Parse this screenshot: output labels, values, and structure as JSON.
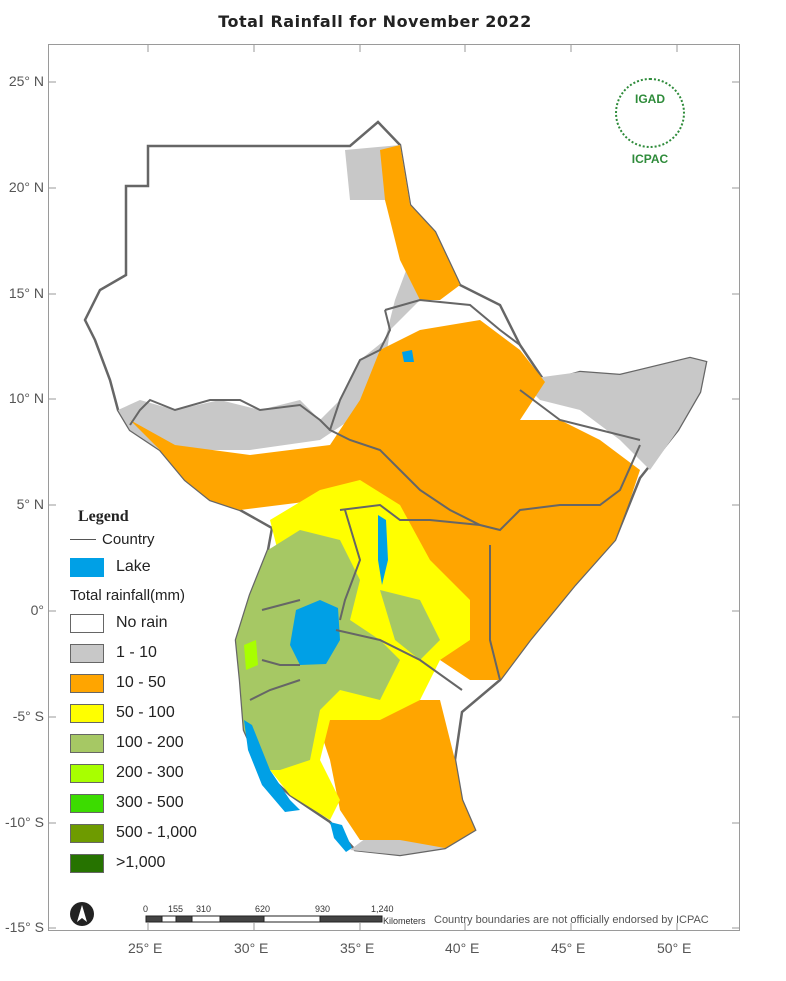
{
  "title": "Total  Rainfall for  November  2022",
  "latitude_labels": [
    "25° N",
    "20° N",
    "15° N",
    "10° N",
    "5° N",
    "0°",
    "-5° S",
    "-10° S",
    "-15° S"
  ],
  "longitude_labels": [
    "25° E",
    "30° E",
    "35° E",
    "40° E",
    "45° E",
    "50° E"
  ],
  "legend": {
    "heading": "Legend",
    "country_label": "Country",
    "lake_label": "Lake",
    "rain_heading": "Total rainfall(mm)",
    "classes": [
      {
        "label": "No rain",
        "color": "#ffffff"
      },
      {
        "label": "1 - 10",
        "color": "#c8c8c8"
      },
      {
        "label": "10 - 50",
        "color": "#ffa500"
      },
      {
        "label": "50 - 100",
        "color": "#ffff00"
      },
      {
        "label": "100 - 200",
        "color": "#a6c864"
      },
      {
        "label": "200 - 300",
        "color": "#a8ff00"
      },
      {
        "label": "300 - 500",
        "color": "#3cdc00"
      },
      {
        "label": "500 - 1,000",
        "color": "#6e9b00"
      },
      {
        "label": ">1,000",
        "color": "#267300"
      }
    ],
    "lake_color": "#00a0e6"
  },
  "scale": {
    "ticks": [
      "0",
      "155",
      "310",
      "620",
      "930",
      "1,240"
    ],
    "unit": "Kilometers"
  },
  "disclaimer": "Country boundaries are not officially endorsed by ICPAC",
  "logo": {
    "top": "IGAD",
    "bottom": "ICPAC"
  }
}
